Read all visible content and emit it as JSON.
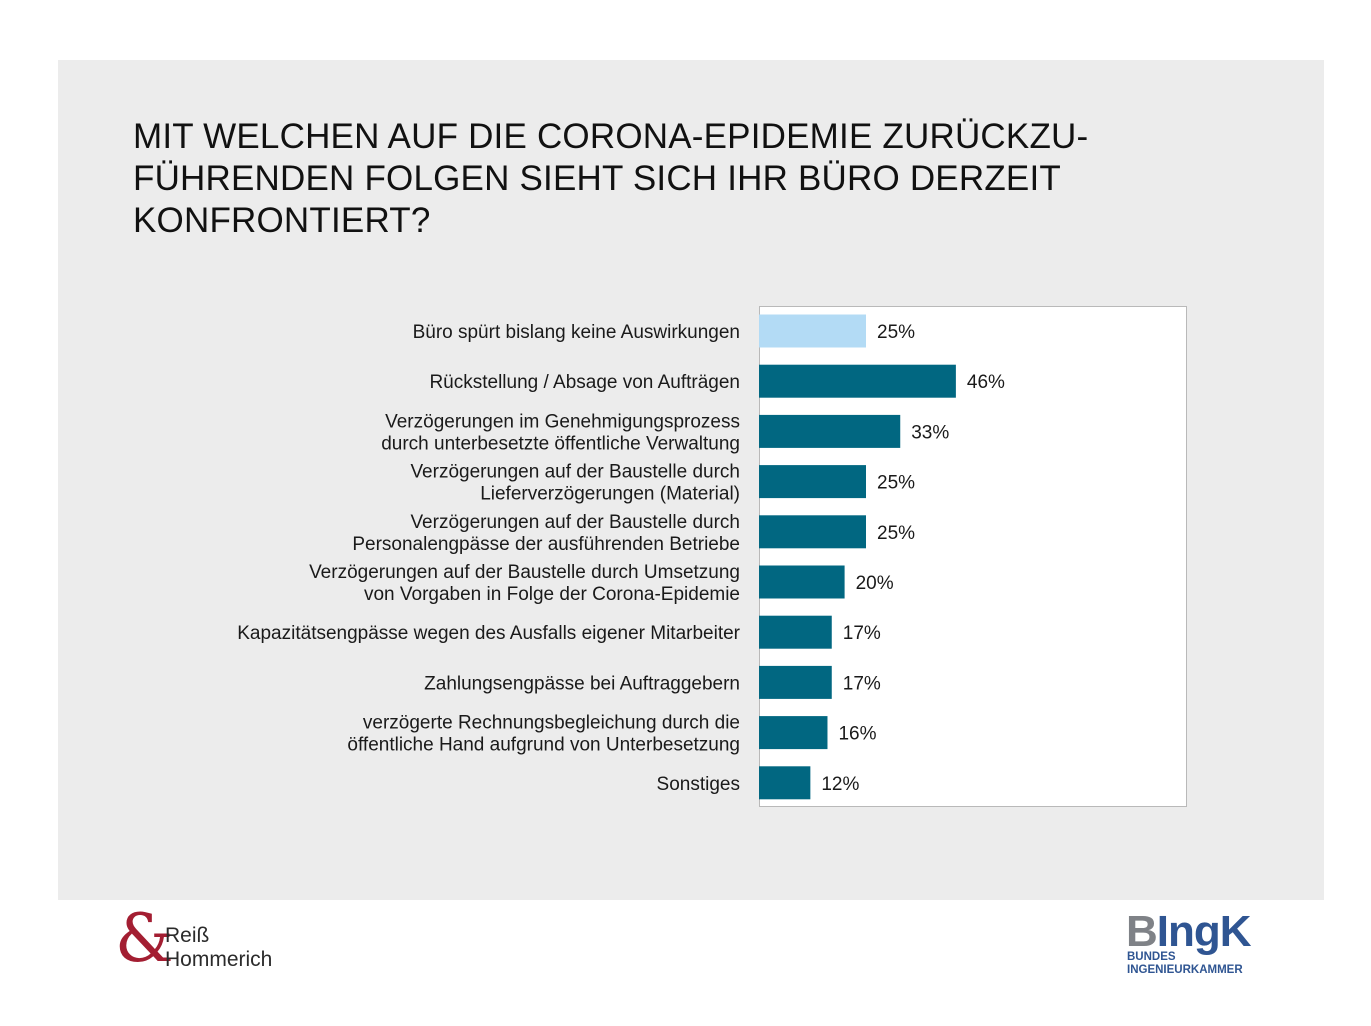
{
  "title_lines": [
    "MIT WELCHEN AUF DIE CORONA-EPIDEMIE ZURÜCKZU-",
    "FÜHRENDEN FOLGEN SIEHT SICH IHR BÜRO DERZEIT",
    "KONFRONTIERT?"
  ],
  "chart_data": {
    "type": "bar",
    "orientation": "horizontal",
    "title": "MIT WELCHEN AUF DIE CORONA-EPIDEMIE ZURÜCKZUFÜHRENDEN FOLGEN SIEHT SICH IHR BÜRO DERZEIT KONFRONTIERT?",
    "xlabel": "",
    "ylabel": "",
    "xlim": [
      0,
      100
    ],
    "grid": false,
    "legend": "none",
    "unit": "%",
    "categories": [
      [
        "Büro spürt bislang keine Auswirkungen"
      ],
      [
        "Rückstellung / Absage von Aufträgen"
      ],
      [
        "Verzögerungen im Genehmigungsprozess",
        "durch unterbesetzte öffentliche Verwaltung"
      ],
      [
        "Verzögerungen auf der Baustelle durch",
        "Lieferverzögerungen (Material)"
      ],
      [
        "Verzögerungen auf der Baustelle durch",
        "Personalengpässe der ausführenden Betriebe"
      ],
      [
        "Verzögerungen auf der Baustelle durch Umsetzung",
        "von Vorgaben in Folge der Corona-Epidemie"
      ],
      [
        "Kapazitätsengpässe wegen des Ausfalls eigener Mitarbeiter"
      ],
      [
        "Zahlungsengpässe bei Auftraggebern"
      ],
      [
        "verzögerte Rechnungsbegleichung durch die",
        "öffentliche Hand aufgrund von Unterbesetzung"
      ],
      [
        "Sonstiges"
      ]
    ],
    "values": [
      25,
      46,
      33,
      25,
      25,
      20,
      17,
      17,
      16,
      12
    ],
    "value_labels": [
      "25%",
      "46%",
      "33%",
      "25%",
      "25%",
      "20%",
      "17%",
      "17%",
      "16%",
      "12%"
    ],
    "colors": {
      "highlight": "#b3dbf5",
      "default": "#016781"
    },
    "highlighted_index": 0
  },
  "logos": {
    "left": {
      "amp": "&",
      "line1": "Reiß",
      "line2": "Hommerich"
    },
    "right": {
      "mark_b": "B",
      "mark_ingk": "IngK",
      "sub1": "BUNDES",
      "sub2": "INGENIEURKAMMER"
    }
  }
}
